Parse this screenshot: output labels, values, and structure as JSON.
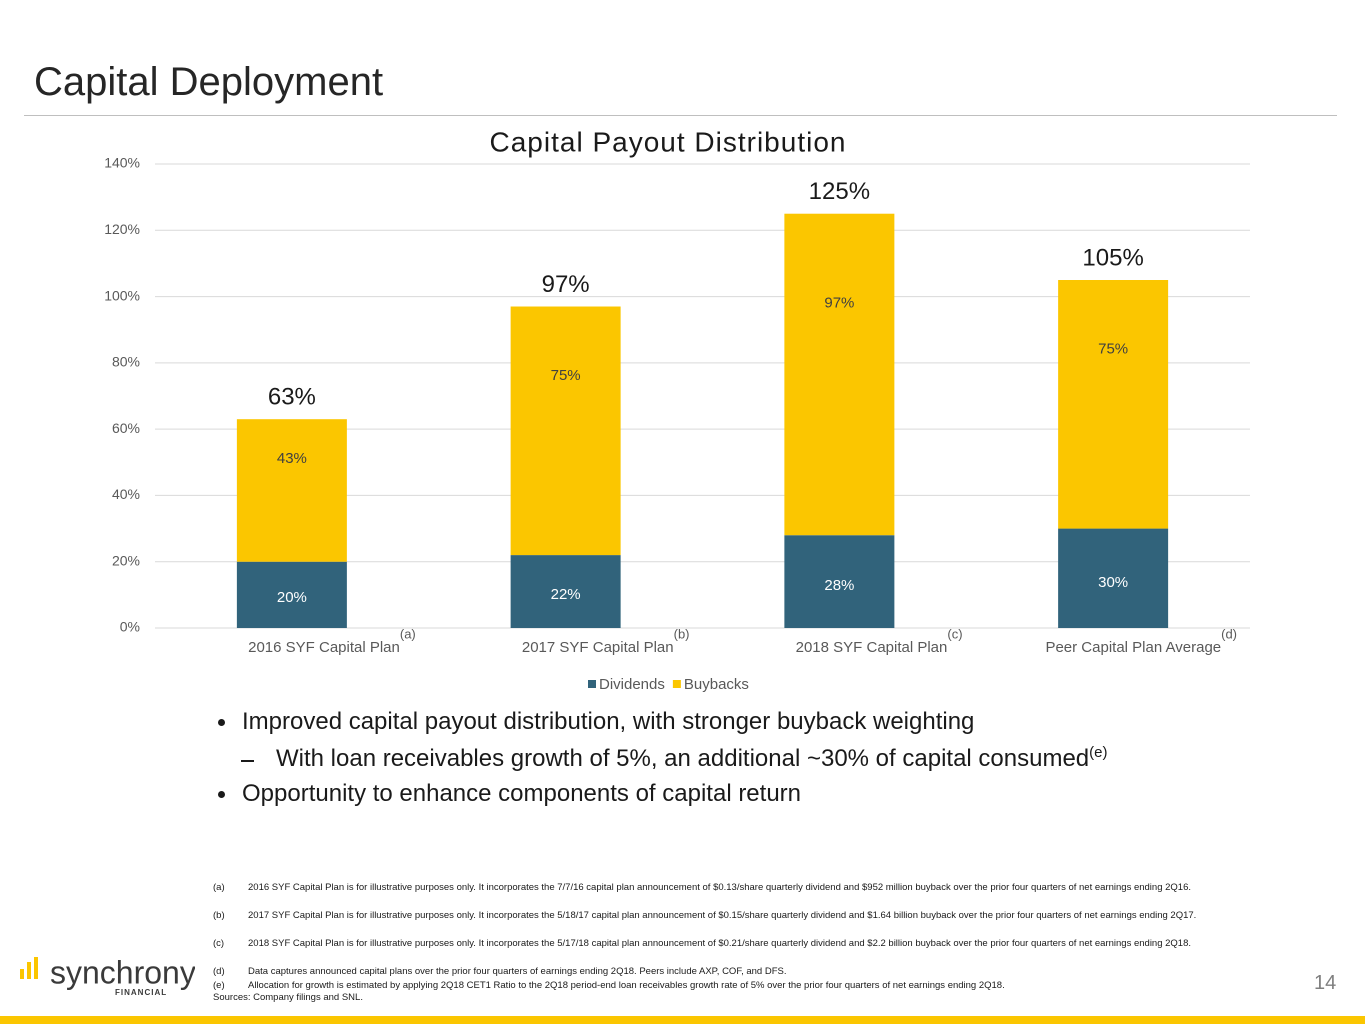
{
  "header": {
    "title": "Capital Deployment"
  },
  "chart_data": {
    "type": "stacked_bar",
    "title": "Capital Payout Distribution",
    "categories": [
      "2016 SYF Capital Plan",
      "2017 SYF Capital Plan",
      "2018 SYF Capital Plan",
      "Peer Capital Plan Average"
    ],
    "category_notes": [
      "(a)",
      "(b)",
      "(c)",
      "(d)"
    ],
    "series": [
      {
        "name": "Dividends",
        "color": "#31637b",
        "values": [
          20,
          22,
          28,
          30
        ],
        "value_labels": [
          "20%",
          "22%",
          "28%",
          "30%"
        ]
      },
      {
        "name": "Buybacks",
        "color": "#fbc600",
        "values": [
          43,
          75,
          97,
          75
        ],
        "value_labels": [
          "43%",
          "75%",
          "97%",
          "75%"
        ]
      }
    ],
    "totals": {
      "values": [
        63,
        97,
        125,
        105
      ],
      "value_labels": [
        "63%",
        "97%",
        "125%",
        "105%"
      ]
    },
    "ylim": [
      0,
      140
    ],
    "yticks": [
      {
        "value": 0,
        "label": "0%"
      },
      {
        "value": 20,
        "label": "20%"
      },
      {
        "value": 40,
        "label": "40%"
      },
      {
        "value": 60,
        "label": "60%"
      },
      {
        "value": 80,
        "label": "80%"
      },
      {
        "value": 100,
        "label": "100%"
      },
      {
        "value": 120,
        "label": "120%"
      },
      {
        "value": 140,
        "label": "140%"
      }
    ],
    "grid": true,
    "legend": "bottom"
  },
  "bullets": [
    "Improved capital payout distribution, with stronger buyback weighting",
    "Opportunity to enhance components of capital return"
  ],
  "sub_bullet": {
    "text": "With loan receivables growth of 5%, an additional ~30% of capital consumed",
    "note": "(e)"
  },
  "footnotes": [
    {
      "marker": "(a)",
      "text": "2016 SYF Capital Plan is for illustrative purposes only. It incorporates the 7/7/16 capital plan announcement of $0.13/share quarterly dividend and $952 million buyback over the prior four quarters of net earnings ending 2Q16."
    },
    {
      "marker": "(b)",
      "text": "2017 SYF Capital Plan is for illustrative purposes only.  It incorporates the 5/18/17 capital plan announcement of $0.15/share quarterly dividend and $1.64 billion buyback over the prior four quarters of net earnings ending 2Q17."
    },
    {
      "marker": "(c)",
      "text": "2018 SYF Capital Plan is for illustrative purposes only.  It incorporates the 5/17/18 capital plan announcement of $0.21/share quarterly dividend and $2.2 billion buyback over the prior four quarters of net earnings ending 2Q18."
    },
    {
      "marker": "(d)",
      "text": "Data captures announced capital plans over the prior four quarters of earnings ending 2Q18. Peers include AXP, COF, and DFS."
    },
    {
      "marker": "(e)",
      "text": "Allocation for growth is estimated by applying 2Q18 CET1 Ratio to the 2Q18 period-end loan receivables growth rate of 5% over the prior four quarters of net earnings ending 2Q18."
    }
  ],
  "sources": "Sources: Company filings and SNL.",
  "logo": {
    "name": "synchrony",
    "tagline": "FINANCIAL"
  },
  "page_number": "14"
}
